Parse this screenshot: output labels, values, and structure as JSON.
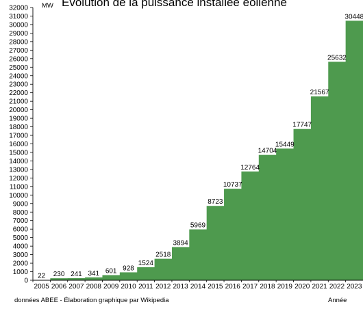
{
  "chart_data": {
    "type": "bar",
    "title": "Évolution de la puissance installée éolienne",
    "ylabel": "MW",
    "xlabel": "Année",
    "source": "données ABEE - Élaboration graphique par Wikipedia",
    "categories": [
      "2005",
      "2006",
      "2007",
      "2008",
      "2009",
      "2010",
      "2011",
      "2012",
      "2013",
      "2014",
      "2015",
      "2016",
      "2017",
      "2018",
      "2019",
      "2020",
      "2021",
      "2022",
      "2023"
    ],
    "values": [
      22,
      230,
      241,
      341,
      601,
      928,
      1524,
      2518,
      3894,
      5969,
      8723,
      10737,
      12764,
      14704,
      15449,
      17747,
      21567,
      25632,
      30448
    ],
    "ylim": [
      0,
      32000
    ],
    "ytick_step": 1000,
    "grid": false,
    "bar_color": "#4e9a4e",
    "style": "step-area"
  }
}
